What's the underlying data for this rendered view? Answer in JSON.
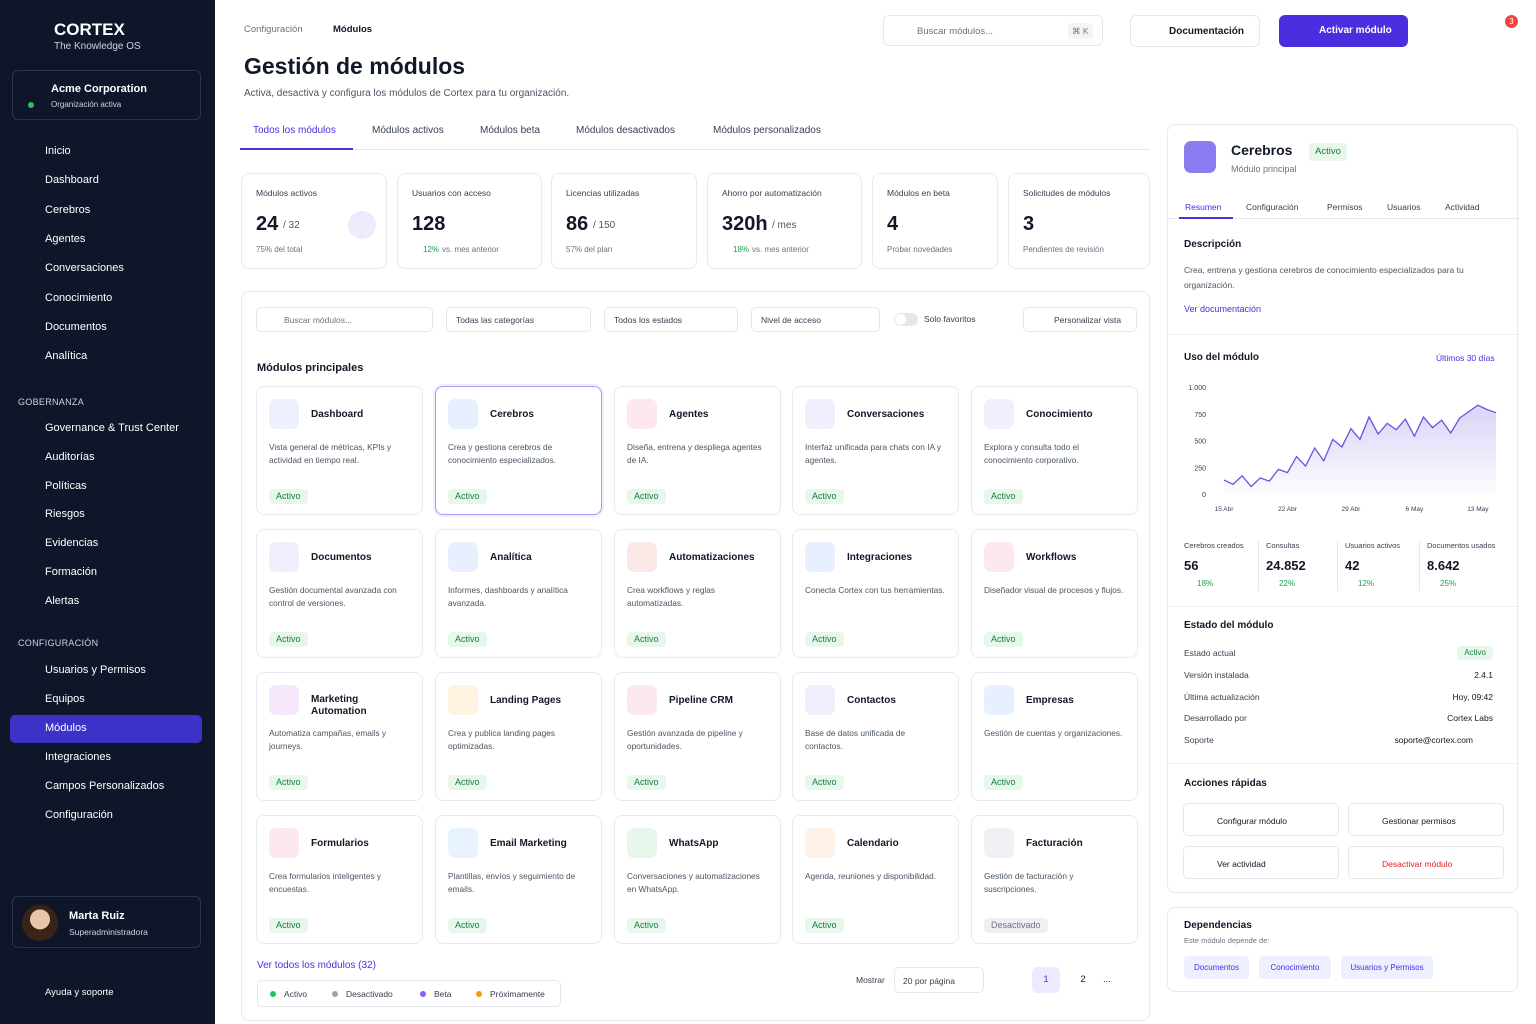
{
  "sidebar": {
    "brand": {
      "name": "CORTEX",
      "tagline": "The Knowledge OS"
    },
    "org": {
      "name": "Acme Corporation",
      "status": "Organización activa"
    },
    "nav": [
      "Inicio",
      "Dashboard",
      "Cerebros",
      "Agentes",
      "Conversaciones",
      "Conocimiento",
      "Documentos",
      "Analítica"
    ],
    "sections": [
      {
        "title": "GOBERNANZA",
        "items": [
          "Governance & Trust Center",
          "Auditorías",
          "Políticas",
          "Riesgos",
          "Evidencias",
          "Formación",
          "Alertas"
        ]
      },
      {
        "title": "CONFIGURACIÓN",
        "items": [
          "Usuarios y Permisos",
          "Equipos",
          "Módulos",
          "Integraciones",
          "Campos Personalizados",
          "Configuración"
        ]
      }
    ],
    "user": {
      "name": "Marta Ruiz",
      "role": "Superadministradora"
    },
    "help": "Ayuda y soporte"
  },
  "header": {
    "breadcrumb": [
      "Configuración",
      "Módulos"
    ],
    "search": "Buscar módulos...",
    "shortcut": "⌘ K",
    "docs": "Documentación",
    "primary": "Activar módulo",
    "notifications": 3
  },
  "page": {
    "title": "Gestión de módulos",
    "subtitle": "Activa, desactiva y configura los módulos de Cortex para tu organización.",
    "tabs": [
      "Todos los módulos",
      "Módulos activos",
      "Módulos beta",
      "Módulos desactivados",
      "Módulos personalizados"
    ]
  },
  "stats": [
    {
      "label": "Módulos activos",
      "value": 24,
      "suffix": "/ 32",
      "note": "75% del total"
    },
    {
      "label": "Usuarios con acceso",
      "value": 128,
      "trend": "12%",
      "note": "vs. mes anterior"
    },
    {
      "label": "Licencias utilizadas",
      "value": 86,
      "suffix": "/ 150",
      "note": "57% del plan"
    },
    {
      "label": "Ahorro por automatización",
      "value": "320h",
      "suffix": "/ mes",
      "trend": "18%",
      "note": "vs. mes anterior"
    },
    {
      "label": "Módulos en beta",
      "value": 4,
      "note": "Probar novedades"
    },
    {
      "label": "Solicitudes de módulos",
      "value": 3,
      "note": "Pendientes de revisión"
    }
  ],
  "filters": {
    "search": "Buscar módulos...",
    "selects": [
      "Todas las categorías",
      "Todos los estados",
      "Nivel de acceso"
    ],
    "toggle": "Solo favoritos",
    "button": "Personalizar vista"
  },
  "section_title": "Módulos principales",
  "modules": [
    {
      "name": "Dashboard",
      "description": "Vista general de métricas, KPIs y actividad en tiempo real.",
      "status": "Activo"
    },
    {
      "name": "Cerebros",
      "description": "Crea y gestiona cerebros de conocimiento especializados.",
      "status": "Activo"
    },
    {
      "name": "Agentes",
      "description": "Diseña, entrena y despliega agentes de IA.",
      "status": "Activo"
    },
    {
      "name": "Conversaciones",
      "description": "Interfaz unificada para chats con IA y agentes.",
      "status": "Activo"
    },
    {
      "name": "Conocimiento",
      "description": "Explora y consulta todo el conocimiento corporativo.",
      "status": "Activo"
    },
    {
      "name": "Documentos",
      "description": "Gestión documental avanzada con control de versiones.",
      "status": "Activo"
    },
    {
      "name": "Analítica",
      "description": "Informes, dashboards y analítica avanzada.",
      "status": "Activo"
    },
    {
      "name": "Automatizaciones",
      "description": "Crea workflows y reglas automatizadas.",
      "status": "Activo"
    },
    {
      "name": "Integraciones",
      "description": "Conecta Cortex con tus herramientas.",
      "status": "Activo"
    },
    {
      "name": "Workflows",
      "description": "Diseñador visual de procesos y flujos.",
      "status": "Activo"
    },
    {
      "name": "Marketing Automation",
      "description": "Automatiza campañas, emails y journeys.",
      "status": "Activo"
    },
    {
      "name": "Landing Pages",
      "description": "Crea y publica landing pages optimizadas.",
      "status": "Activo"
    },
    {
      "name": "Pipeline CRM",
      "description": "Gestión avanzada de pipeline y oportunidades.",
      "status": "Activo"
    },
    {
      "name": "Contactos",
      "description": "Base de datos unificada de contactos.",
      "status": "Activo"
    },
    {
      "name": "Empresas",
      "description": "Gestión de cuentas y organizaciones.",
      "status": "Activo"
    },
    {
      "name": "Formularios",
      "description": "Crea formularios inteligentes y encuestas.",
      "status": "Activo"
    },
    {
      "name": "Email Marketing",
      "description": "Plantillas, envíos y seguimiento de emails.",
      "status": "Activo"
    },
    {
      "name": "WhatsApp",
      "description": "Conversaciones y automatizaciones en WhatsApp.",
      "status": "Activo"
    },
    {
      "name": "Calendario",
      "description": "Agenda, reuniones y disponibilidad.",
      "status": "Activo"
    },
    {
      "name": "Facturación",
      "description": "Gestión de facturación y suscripciones.",
      "status": "Desactivado"
    }
  ],
  "footer": {
    "link": "Ver todos los módulos (32)",
    "legend": [
      "Activo",
      "Desactivado",
      "Beta",
      "Próximamente"
    ],
    "show": "Mostrar",
    "per_page": "20 por página",
    "pages": [
      "1",
      "2",
      "..."
    ]
  },
  "panel": {
    "name": "Cerebros",
    "badge": "Activo",
    "subtitle": "Módulo principal",
    "tabs": [
      "Resumen",
      "Configuración",
      "Permisos",
      "Usuarios",
      "Actividad"
    ],
    "description_title": "Descripción",
    "description": "Crea, entrena y gestiona cerebros de conocimiento especializados para tu organización.",
    "doc_link": "Ver documentación",
    "metrics": [
      {
        "label": "Cerebros creados",
        "value": "56",
        "trend": "18%"
      },
      {
        "label": "Consultas",
        "value": "24.852",
        "trend": "22%"
      },
      {
        "label": "Usuarios activos",
        "value": "42",
        "trend": "12%"
      },
      {
        "label": "Documentos usados",
        "value": "8.642",
        "trend": "25%"
      }
    ],
    "status_title": "Estado del módulo",
    "status_rows": [
      [
        "Estado actual",
        "Activo"
      ],
      [
        "Versión instalada",
        "2.4.1"
      ],
      [
        "Última actualización",
        "Hoy, 09:42"
      ],
      [
        "Desarrollado por",
        "Cortex Labs"
      ],
      [
        "Soporte",
        "soporte@cortex.com"
      ]
    ],
    "actions_title": "Acciones rápidas",
    "actions": [
      "Configurar módulo",
      "Gestionar permisos",
      "Ver actividad",
      "Desactivar módulo"
    ],
    "dependencies_title": "Dependencias",
    "dependencies_subtitle": "Este módulo depende de:",
    "dependencies": [
      "Documentos",
      "Conocimiento",
      "Usuarios y Permisos"
    ]
  },
  "chart_data": {
    "type": "line",
    "title": "Uso del módulo",
    "range": "Últimos 30 días",
    "categories": [
      "15 Abr",
      null,
      null,
      null,
      null,
      null,
      null,
      "22 Abr",
      null,
      null,
      null,
      null,
      null,
      null,
      "29 Abr",
      null,
      null,
      null,
      null,
      null,
      null,
      "6 May",
      null,
      null,
      null,
      null,
      null,
      null,
      "13 May",
      null,
      null
    ],
    "values": [
      130,
      90,
      170,
      70,
      150,
      120,
      230,
      200,
      350,
      260,
      430,
      310,
      510,
      440,
      610,
      510,
      720,
      560,
      660,
      600,
      700,
      540,
      720,
      620,
      690,
      570,
      710,
      770,
      830,
      790,
      760
    ],
    "color": "#6d4fe0",
    "ylim": [
      0,
      1000
    ],
    "yticks": [
      0,
      250,
      500,
      750,
      {
        "value": 1000,
        "label": "1.000"
      }
    ],
    "grid": false
  }
}
